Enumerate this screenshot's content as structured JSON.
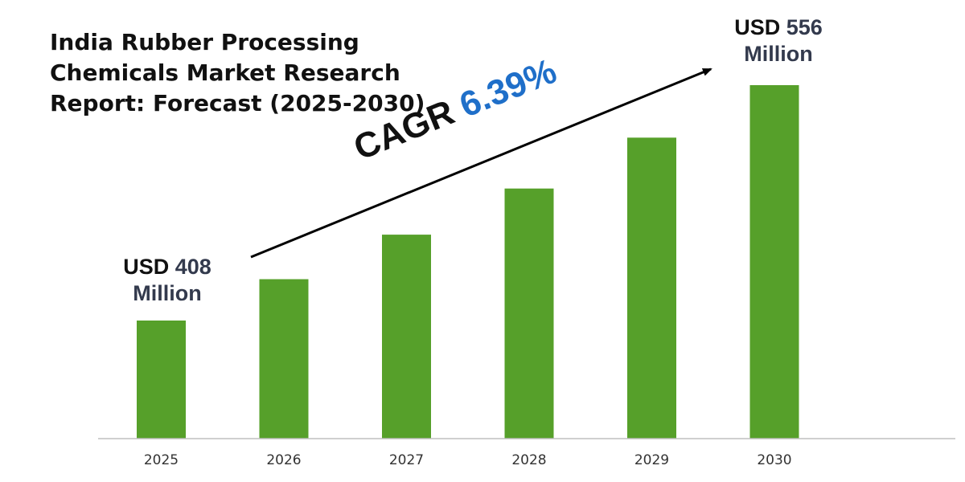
{
  "title": "India Rubber Processing Chemicals Market Research Report: Forecast (2025-2030)",
  "callouts": {
    "start": {
      "currency": "USD",
      "value": "408",
      "unit": "Million"
    },
    "end": {
      "currency": "USD",
      "value": "556",
      "unit": "Million"
    }
  },
  "cagr": {
    "label": "CAGR",
    "value": "6.39%"
  },
  "colors": {
    "bar": "#56a02a",
    "cagr_value": "#1f6fc9",
    "axis": "#bfbfbf",
    "arrow": "#000000"
  },
  "chart_data": {
    "type": "bar",
    "title": "India Rubber Processing Chemicals Market Research Report: Forecast (2025-2030)",
    "categories": [
      "2025",
      "2026",
      "2027",
      "2028",
      "2029",
      "2030"
    ],
    "values": [
      408,
      434,
      462,
      491,
      523,
      556
    ],
    "unit": "USD Million",
    "grid": false,
    "annotations": [
      "USD 408 Million",
      "USD 556 Million",
      "CAGR 6.39%"
    ]
  }
}
